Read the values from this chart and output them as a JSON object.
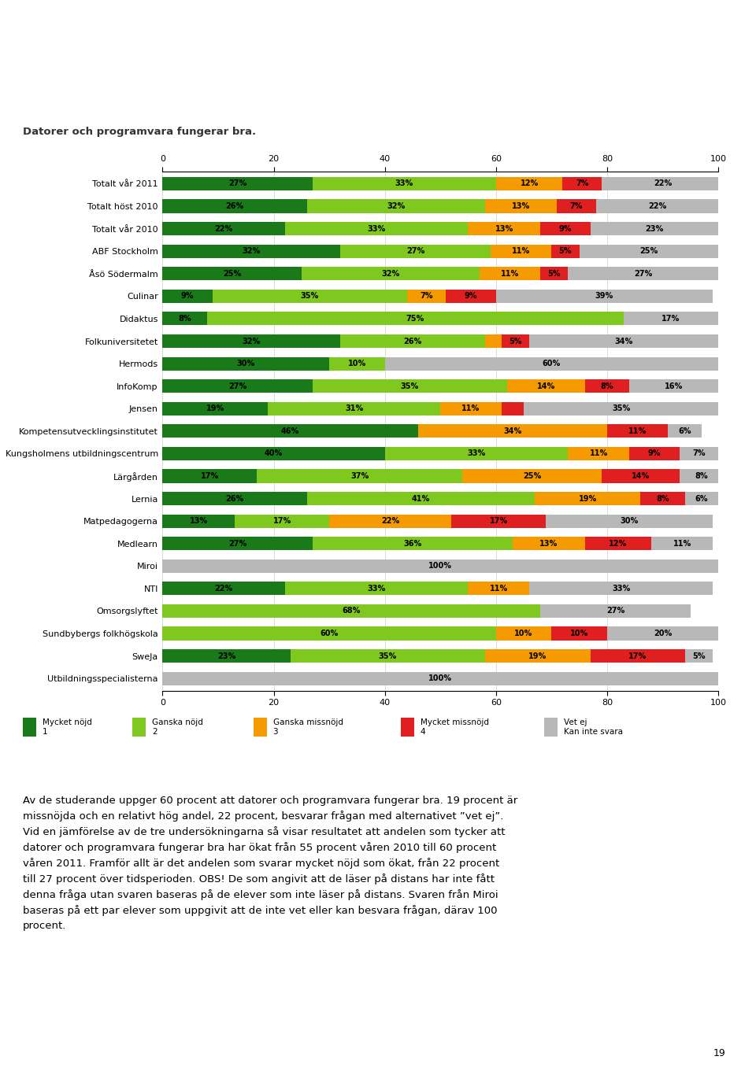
{
  "title": "Datorer och programvara fungerar bra.",
  "categories": [
    "Totalt vår 2011",
    "Totalt höst 2010",
    "Totalt vår 2010",
    "ABF Stockholm",
    "Åsö Södermalm",
    "Culinar",
    "Didaktus",
    "Folkuniversitetet",
    "Hermods",
    "InfoKomp",
    "Jensen",
    "Kompetensutvecklingsinstitutet",
    "Kungsholmens utbildningscentrum",
    "Lärgården",
    "Lernia",
    "Matpedagogerna",
    "Medlearn",
    "Miroi",
    "NTI",
    "Omsorgslyftet",
    "Sundbybergs folkhögskola",
    "SweJa",
    "Utbildningsspecialisterna"
  ],
  "data": [
    [
      27,
      33,
      12,
      7,
      22
    ],
    [
      26,
      32,
      13,
      7,
      22
    ],
    [
      22,
      33,
      13,
      9,
      23
    ],
    [
      32,
      27,
      11,
      5,
      25
    ],
    [
      25,
      32,
      11,
      5,
      27
    ],
    [
      9,
      35,
      7,
      9,
      39
    ],
    [
      8,
      75,
      0,
      0,
      17
    ],
    [
      32,
      26,
      3,
      5,
      34
    ],
    [
      30,
      10,
      0,
      0,
      60
    ],
    [
      27,
      35,
      14,
      8,
      16
    ],
    [
      19,
      31,
      11,
      4,
      35
    ],
    [
      46,
      0,
      34,
      11,
      6
    ],
    [
      40,
      33,
      11,
      9,
      7
    ],
    [
      17,
      37,
      25,
      14,
      8
    ],
    [
      26,
      41,
      19,
      8,
      6
    ],
    [
      13,
      17,
      22,
      17,
      30
    ],
    [
      27,
      36,
      13,
      12,
      11
    ],
    [
      0,
      0,
      0,
      0,
      100
    ],
    [
      22,
      33,
      11,
      0,
      33
    ],
    [
      0,
      68,
      0,
      0,
      27
    ],
    [
      0,
      60,
      10,
      10,
      20
    ],
    [
      23,
      35,
      19,
      17,
      5
    ],
    [
      0,
      0,
      0,
      0,
      100
    ]
  ],
  "colors": [
    "#1a7a1a",
    "#7ec820",
    "#f59a00",
    "#e02020",
    "#b8b8b8"
  ],
  "legend_labels": [
    "Mycket nöjd\n1",
    "Ganska nöjd\n2",
    "Ganska missnöjd\n3",
    "Mycket missnöjd\n4",
    "Vet ej\nKan inte svara"
  ],
  "bar_height": 0.6,
  "xlim": [
    0,
    100
  ],
  "xticks": [
    0,
    20,
    40,
    60,
    80,
    100
  ],
  "fontsize_labels": 8.0,
  "fontsize_bars": 7.0,
  "body_text": "Av de studerande uppger 60 procent att datorer och programvara fungerar bra. 19 procent är missnöjda och en relativt hög andel, 22 procent, besvarar frågan med alternativet ”vet ej”. Vid en jämförelse av de tre undersökningarna så visar resultatet att andelen som tycker att datorer och programvara fungerar bra har ökat från 55 procent våren 2010 till 60 procent våren 2011. Framför allt är det andelen som svarar mycket nöjd som ökat, från 22 procent till 27 procent över tidsperioden. OBS! De som angivit att de läser på distans har inte fått denna fråga utan svaren baseras på de elever som inte läser på distans. Svaren från Miroi baseras på ett par elever som uppgivit att de inte vet eller kan besvara frågan, därav 100 procent.",
  "page_number": "19"
}
